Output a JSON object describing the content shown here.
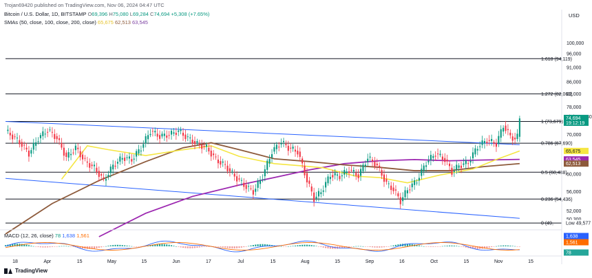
{
  "header": {
    "publisher": "Trojan69420 published on TradingView.com, Nov 06, 2024 04:47 UTC",
    "symbol": "Bitcoin / U.S. Dollar, 1D, BITSTAMP",
    "o_label": "O",
    "o_value": "69,396",
    "h_label": "H",
    "h_value": "75,080",
    "l_label": "L",
    "l_value": "69,284",
    "c_label": "C",
    "c_value": "74,694",
    "change": "+5,308 (+7.65%)",
    "sma_label": "SMAs (50, close, 100, close, 200, close)",
    "sma50_value": "65,675",
    "sma100_value": "62,513",
    "sma200_value": "63,545",
    "macd_label": "MACD (12, 26, close)",
    "macd_v1": "78",
    "macd_v2": "1,638",
    "macd_v3": "1,561",
    "currency": "USD"
  },
  "footer": {
    "brand": "TradingView"
  },
  "colors": {
    "up": "#089981",
    "down": "#f23645",
    "sma50": "#f5e642",
    "sma100": "#8d5a3b",
    "sma200": "#9c27b0",
    "channel": "#2962ff",
    "macd": "#2962ff",
    "signal": "#ff6d00"
  },
  "chart_data": {
    "type": "candlestick",
    "x_tick_labels": [
      "18",
      "Apr",
      "15",
      "May",
      "15",
      "Jun",
      "17",
      "Jul",
      "15",
      "Aug",
      "15",
      "Sep",
      "16",
      "Oct",
      "15",
      "Nov",
      "15"
    ],
    "y_scale": "log",
    "y_ticks": [
      100000,
      96000,
      91000,
      86000,
      82000,
      78000,
      70000,
      66000,
      60000,
      56000,
      52000,
      50300
    ],
    "y_tick_labels": [
      "100,000",
      "96,000",
      "91,000",
      "86,000",
      "82,000",
      "78,000",
      "70,000",
      "66,000",
      "60,000",
      "56,000",
      "52,000",
      "50,300"
    ],
    "ylim": [
      48800,
      108000
    ],
    "fib_levels": [
      {
        "label": "1.618 (94,119)",
        "value": 94119
      },
      {
        "label": "1.272 (82,063)",
        "value": 82063
      },
      {
        "label": "1 (73,679)",
        "value": 73679
      },
      {
        "label": "0.786 (67,690)",
        "value": 67690
      },
      {
        "label": "0.5 (60,438)",
        "value": 60438
      },
      {
        "label": "0.236 (54,436)",
        "value": 54436
      },
      {
        "label": "0 (49,",
        "value": 49577
      }
    ],
    "price_tags": [
      {
        "label": "High",
        "value": "75,080"
      },
      {
        "label": "74,694",
        "sub": "19:12:19"
      },
      {
        "label": "65,675"
      },
      {
        "label": "63,545"
      },
      {
        "label": "62,513"
      },
      {
        "label": "Low",
        "value": "49,577"
      }
    ],
    "close_anchors": [
      [
        0,
        71000
      ],
      [
        6,
        68000
      ],
      [
        10,
        65000
      ],
      [
        14,
        69000
      ],
      [
        18,
        71300
      ],
      [
        22,
        69000
      ],
      [
        26,
        64000
      ],
      [
        30,
        66500
      ],
      [
        34,
        63000
      ],
      [
        38,
        61500
      ],
      [
        42,
        58500
      ],
      [
        46,
        62000
      ],
      [
        50,
        64000
      ],
      [
        54,
        63500
      ],
      [
        58,
        66500
      ],
      [
        62,
        71000
      ],
      [
        66,
        69500
      ],
      [
        70,
        70000
      ],
      [
        74,
        71000
      ],
      [
        78,
        69000
      ],
      [
        82,
        67500
      ],
      [
        86,
        66500
      ],
      [
        90,
        63500
      ],
      [
        94,
        62000
      ],
      [
        98,
        59500
      ],
      [
        102,
        57500
      ],
      [
        106,
        56000
      ],
      [
        110,
        59500
      ],
      [
        114,
        65500
      ],
      [
        118,
        68000
      ],
      [
        121,
        66500
      ],
      [
        125,
        65500
      ],
      [
        129,
        58500
      ],
      [
        132,
        54500
      ],
      [
        135,
        56000
      ],
      [
        139,
        59800
      ],
      [
        143,
        59500
      ],
      [
        147,
        61000
      ],
      [
        151,
        59600
      ],
      [
        155,
        64000
      ],
      [
        159,
        62000
      ],
      [
        163,
        57800
      ],
      [
        166,
        56500
      ],
      [
        169,
        54000
      ],
      [
        172,
        56500
      ],
      [
        176,
        58500
      ],
      [
        180,
        62800
      ],
      [
        184,
        65000
      ],
      [
        188,
        63500
      ],
      [
        191,
        60500
      ],
      [
        194,
        62000
      ],
      [
        198,
        62800
      ],
      [
        202,
        66800
      ],
      [
        206,
        68500
      ],
      [
        210,
        67500
      ],
      [
        213,
        72500
      ],
      [
        216,
        69500
      ],
      [
        218,
        68800
      ],
      [
        219,
        69396
      ],
      [
        220,
        74694
      ]
    ],
    "sma50": [
      [
        24,
        58800
      ],
      [
        35,
        67000
      ],
      [
        44,
        66000
      ],
      [
        60,
        64500
      ],
      [
        74,
        65800
      ],
      [
        88,
        67000
      ],
      [
        100,
        64300
      ],
      [
        115,
        62500
      ],
      [
        126,
        62000
      ],
      [
        136,
        61500
      ],
      [
        150,
        59500
      ],
      [
        160,
        59200
      ],
      [
        172,
        58000
      ],
      [
        186,
        59800
      ],
      [
        200,
        61200
      ],
      [
        210,
        63500
      ],
      [
        220,
        65675
      ]
    ],
    "sma100": [
      [
        0,
        47500
      ],
      [
        20,
        53500
      ],
      [
        40,
        58500
      ],
      [
        60,
        63000
      ],
      [
        76,
        66500
      ],
      [
        88,
        67800
      ],
      [
        100,
        66000
      ],
      [
        115,
        63700
      ],
      [
        130,
        63000
      ],
      [
        145,
        62200
      ],
      [
        160,
        61600
      ],
      [
        175,
        60800
      ],
      [
        190,
        60800
      ],
      [
        205,
        61800
      ],
      [
        220,
        62513
      ]
    ],
    "sma200": [
      [
        40,
        47000
      ],
      [
        60,
        51500
      ],
      [
        80,
        55000
      ],
      [
        100,
        57500
      ],
      [
        115,
        59200
      ],
      [
        130,
        61000
      ],
      [
        145,
        62500
      ],
      [
        160,
        63200
      ],
      [
        175,
        63500
      ],
      [
        190,
        63200
      ],
      [
        205,
        63400
      ],
      [
        220,
        63545
      ]
    ],
    "channel_top": [
      [
        0,
        73679
      ],
      [
        220,
        67300
      ]
    ],
    "channel_bottom": [
      [
        0,
        59000
      ],
      [
        220,
        50500
      ]
    ]
  }
}
